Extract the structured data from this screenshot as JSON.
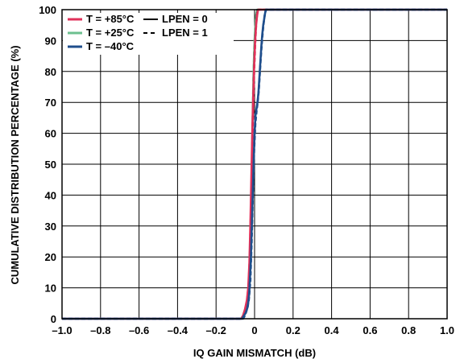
{
  "chart_data": {
    "type": "line",
    "title": "",
    "xlabel": "IQ GAIN MISMATCH (dB)",
    "ylabel": "CUMULATIVE DISTRIBUTION PERCENTAGE (%)",
    "xlim": [
      -1.0,
      1.0
    ],
    "ylim": [
      0,
      100
    ],
    "grid": true,
    "legend_placement": "top-left",
    "x_ticks": [
      "–1.0",
      "–0.8",
      "–0.6",
      "–0.4",
      "–0.2",
      "0",
      "0.2",
      "0.4",
      "0.6",
      "0.8",
      "1.0"
    ],
    "x_tick_values": [
      -1.0,
      -0.8,
      -0.6,
      -0.4,
      -0.2,
      0,
      0.2,
      0.4,
      0.6,
      0.8,
      1.0
    ],
    "y_ticks": [
      "0",
      "10",
      "20",
      "30",
      "40",
      "50",
      "60",
      "70",
      "80",
      "90",
      "100"
    ],
    "y_tick_values": [
      0,
      10,
      20,
      30,
      40,
      50,
      60,
      70,
      80,
      90,
      100
    ],
    "legend": [
      {
        "label": "T = +85°C",
        "color": "#e0315a",
        "dash": "solid"
      },
      {
        "label": "T = +25°C",
        "color": "#6cc08f",
        "dash": "solid"
      },
      {
        "label": "T = –40°C",
        "color": "#1f4e8c",
        "dash": "solid"
      },
      {
        "label": "LPEN = 0",
        "color": "#000000",
        "dash": "solid"
      },
      {
        "label": "LPEN = 1",
        "color": "#000000",
        "dash": "dashed"
      }
    ],
    "series": [
      {
        "color": "#6cc08f",
        "dash": "solid",
        "x": [
          -1.0,
          -0.07,
          -0.06,
          -0.05,
          -0.04,
          -0.03,
          -0.025,
          -0.02,
          -0.015,
          -0.01,
          -0.005,
          0.0,
          0.005,
          0.01,
          0.015,
          0.02,
          0.025,
          1.0
        ],
        "y": [
          0,
          0,
          1,
          3,
          5,
          8,
          12,
          25,
          45,
          65,
          80,
          90,
          96,
          99,
          100,
          100,
          100,
          100
        ]
      },
      {
        "color": "#6cc08f",
        "dash": "dashed",
        "x": [
          -1.0,
          -0.065,
          -0.055,
          -0.045,
          -0.035,
          -0.028,
          -0.022,
          -0.017,
          -0.012,
          -0.007,
          -0.002,
          0.003,
          0.008,
          0.013,
          0.018,
          1.0
        ],
        "y": [
          0,
          0,
          1,
          3,
          6,
          10,
          20,
          38,
          58,
          75,
          87,
          94,
          98,
          100,
          100,
          100
        ]
      },
      {
        "color": "#000000",
        "dash": "solid",
        "x": [
          -1.0,
          -0.07,
          -0.06,
          -0.05,
          -0.04,
          -0.03,
          -0.025,
          -0.02,
          -0.015,
          -0.01,
          -0.005,
          0.0,
          0.005,
          0.01,
          0.015,
          0.02,
          1.0
        ],
        "y": [
          0,
          0,
          1,
          3,
          6,
          10,
          20,
          35,
          52,
          68,
          80,
          88,
          94,
          98,
          100,
          100,
          100
        ]
      },
      {
        "color": "#000000",
        "dash": "dashed",
        "x": [
          -1.0,
          -0.065,
          -0.055,
          -0.045,
          -0.035,
          -0.028,
          -0.02,
          -0.014,
          -0.008,
          -0.003,
          0.002,
          0.008,
          0.014,
          1.0
        ],
        "y": [
          0,
          0,
          1,
          3,
          7,
          15,
          30,
          50,
          68,
          82,
          91,
          97,
          100,
          100
        ]
      },
      {
        "color": "#e0315a",
        "dash": "solid",
        "x": [
          -1.0,
          -0.07,
          -0.06,
          -0.05,
          -0.04,
          -0.033,
          -0.027,
          -0.022,
          -0.017,
          -0.012,
          -0.007,
          -0.002,
          0.003,
          0.008,
          0.013,
          0.018,
          0.023,
          1.0
        ],
        "y": [
          0,
          0,
          1,
          3,
          6,
          10,
          18,
          30,
          45,
          60,
          72,
          82,
          90,
          95,
          98,
          100,
          100,
          100
        ]
      },
      {
        "color": "#e0315a",
        "dash": "dashed",
        "x": [
          -1.0,
          -0.065,
          -0.055,
          -0.045,
          -0.037,
          -0.03,
          -0.024,
          -0.018,
          -0.012,
          -0.006,
          -0.001,
          0.004,
          0.009,
          0.014,
          0.02,
          1.0
        ],
        "y": [
          0,
          0,
          1,
          3,
          7,
          12,
          22,
          38,
          55,
          70,
          82,
          90,
          96,
          99,
          100,
          100
        ]
      },
      {
        "color": "#1f4e8c",
        "dash": "solid",
        "x": [
          -1.0,
          -0.065,
          -0.055,
          -0.045,
          -0.035,
          -0.028,
          -0.02,
          -0.012,
          -0.005,
          0.0,
          0.005,
          0.01,
          0.015,
          0.02,
          0.025,
          0.03,
          0.035,
          0.04,
          0.045,
          0.05,
          0.055,
          0.06,
          1.0
        ],
        "y": [
          0,
          0,
          1,
          2,
          4,
          8,
          18,
          35,
          50,
          60,
          66,
          68,
          70,
          73,
          78,
          83,
          88,
          92,
          95,
          97,
          99,
          100,
          100
        ]
      },
      {
        "color": "#1f4e8c",
        "dash": "dashed",
        "x": [
          -1.0,
          -0.06,
          -0.05,
          -0.04,
          -0.03,
          -0.022,
          -0.015,
          -0.008,
          -0.002,
          0.004,
          0.01,
          0.016,
          0.022,
          0.028,
          0.034,
          0.04,
          0.046,
          0.052,
          0.058,
          1.0
        ],
        "y": [
          0,
          0,
          1,
          3,
          6,
          12,
          25,
          42,
          55,
          63,
          67,
          70,
          74,
          80,
          86,
          91,
          95,
          98,
          100,
          100
        ]
      }
    ]
  }
}
